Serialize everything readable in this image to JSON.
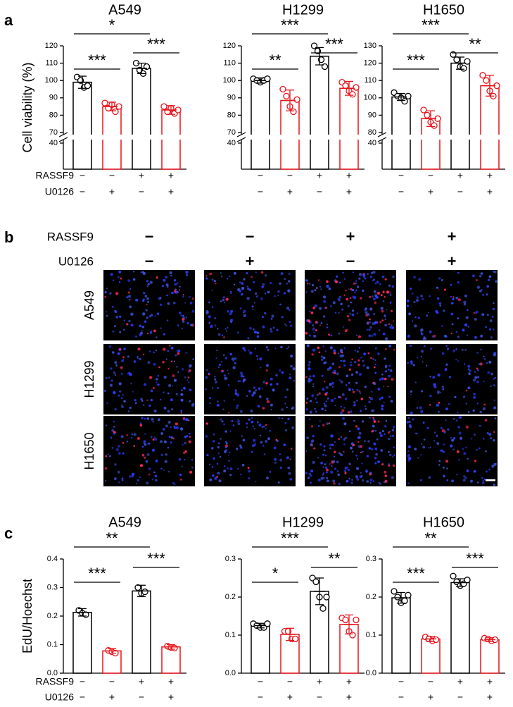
{
  "panel_labels": [
    "a",
    "b",
    "c"
  ],
  "chart_data": [
    {
      "type": "bar",
      "title": "A549",
      "y_label": "Cell viability (%)",
      "sign_row_labels": [
        "RASSF9",
        "U0126"
      ],
      "rassf9": [
        "−",
        "−",
        "+",
        "+"
      ],
      "u0126": [
        "−",
        "+",
        "−",
        "+"
      ],
      "values": [
        99,
        85,
        107,
        83
      ],
      "errors": [
        3.5,
        2.5,
        3,
        2.5
      ],
      "points": [
        [
          102,
          100,
          96,
          97
        ],
        [
          87,
          84,
          86,
          82,
          85
        ],
        [
          110,
          106,
          104,
          108
        ],
        [
          85,
          82,
          84,
          81,
          83
        ]
      ],
      "colors": [
        "#000000",
        "#e8131b",
        "#000000",
        "#e8131b"
      ],
      "ylim": [
        70,
        120
      ],
      "yticks": [
        70,
        80,
        90,
        100,
        110,
        120
      ],
      "ylim_lower": [
        0,
        40
      ],
      "yticks_lower": [
        40
      ],
      "annotations": [
        "***",
        "***",
        "*"
      ]
    },
    {
      "type": "bar",
      "title": "H1299",
      "rassf9": [
        "−",
        "−",
        "+",
        "+"
      ],
      "u0126": [
        "−",
        "+",
        "−",
        "+"
      ],
      "values": [
        100,
        88.5,
        114,
        95.5
      ],
      "errors": [
        1.5,
        6,
        5,
        4
      ],
      "points": [
        [
          101,
          100,
          99,
          100,
          101
        ],
        [
          95,
          91,
          85,
          82,
          89
        ],
        [
          120,
          117,
          112,
          108
        ],
        [
          99,
          97,
          94,
          92,
          96
        ]
      ],
      "colors": [
        "#000000",
        "#e8131b",
        "#000000",
        "#e8131b"
      ],
      "ylim": [
        70,
        120
      ],
      "yticks": [
        70,
        80,
        90,
        100,
        110,
        120
      ],
      "ylim_lower": [
        0,
        40
      ],
      "yticks_lower": [
        40
      ],
      "annotations": [
        "**",
        "***",
        "***"
      ]
    },
    {
      "type": "bar",
      "title": "H1650",
      "rassf9": [
        "−",
        "−",
        "+",
        "+"
      ],
      "u0126": [
        "−",
        "+",
        "−",
        "+"
      ],
      "values": [
        100.5,
        88,
        120,
        107
      ],
      "errors": [
        2,
        4.5,
        3.5,
        6
      ],
      "points": [
        [
          103,
          101,
          100,
          98,
          101
        ],
        [
          93,
          90,
          86,
          84,
          88
        ],
        [
          125,
          122,
          118,
          117,
          121
        ],
        [
          113,
          110,
          104,
          101,
          107
        ]
      ],
      "colors": [
        "#000000",
        "#e8131b",
        "#000000",
        "#e8131b"
      ],
      "ylim": [
        80,
        130
      ],
      "yticks": [
        80,
        90,
        100,
        110,
        120,
        130
      ],
      "ylim_lower": [
        0,
        40
      ],
      "yticks_lower": [
        40
      ],
      "annotations": [
        "***",
        "**",
        "***"
      ]
    },
    {
      "type": "bar",
      "title": "A549",
      "y_label": "EdU/Hoechst",
      "sign_row_labels": [
        "RASSF9",
        "U0126"
      ],
      "rassf9": [
        "−",
        "−",
        "+",
        "+"
      ],
      "u0126": [
        "−",
        "+",
        "−",
        "+"
      ],
      "values": [
        0.213,
        0.078,
        0.288,
        0.092
      ],
      "errors": [
        0.013,
        0.008,
        0.02,
        0.008
      ],
      "points": [
        [
          0.22,
          0.21,
          0.205
        ],
        [
          0.08,
          0.075,
          0.07
        ],
        [
          0.3,
          0.28,
          0.285
        ],
        [
          0.095,
          0.09,
          0.088
        ]
      ],
      "colors": [
        "#000000",
        "#e8131b",
        "#000000",
        "#e8131b"
      ],
      "ylim": [
        0,
        0.4
      ],
      "yticks": [
        {
          "value": 0,
          "label": "0.0"
        },
        0.1,
        0.2,
        0.3,
        0.4
      ],
      "annotations": [
        "***",
        "***",
        "**"
      ]
    },
    {
      "type": "bar",
      "title": "H1299",
      "rassf9": [
        "−",
        "−",
        "+",
        "+"
      ],
      "u0126": [
        "−",
        "+",
        "−",
        "+"
      ],
      "values": [
        0.125,
        0.102,
        0.215,
        0.128
      ],
      "errors": [
        0.006,
        0.016,
        0.035,
        0.025
      ],
      "points": [
        [
          0.13,
          0.125,
          0.12,
          0.12,
          0.13
        ],
        [
          0.11,
          0.11,
          0.09,
          0.09
        ],
        [
          0.25,
          0.24,
          0.2,
          0.17,
          0.2
        ],
        [
          0.145,
          0.14,
          0.11,
          0.1,
          0.14
        ]
      ],
      "colors": [
        "#000000",
        "#e8131b",
        "#000000",
        "#e8131b"
      ],
      "ylim": [
        0,
        0.3
      ],
      "yticks": [
        {
          "value": 0,
          "label": "0.0"
        },
        0.1,
        0.2,
        0.3
      ],
      "annotations": [
        "*",
        "**",
        "***"
      ]
    },
    {
      "type": "bar",
      "title": "H1650",
      "rassf9": [
        "−",
        "−",
        "+",
        "+"
      ],
      "u0126": [
        "−",
        "+",
        "−",
        "+"
      ],
      "values": [
        0.198,
        0.09,
        0.238,
        0.088
      ],
      "errors": [
        0.014,
        0.007,
        0.01,
        0.005
      ],
      "points": [
        [
          0.215,
          0.2,
          0.185,
          0.19,
          0.205
        ],
        [
          0.095,
          0.09,
          0.085,
          0.088
        ],
        [
          0.255,
          0.24,
          0.23,
          0.235,
          0.245
        ],
        [
          0.092,
          0.09,
          0.085,
          0.088
        ]
      ],
      "colors": [
        "#000000",
        "#e8131b",
        "#000000",
        "#e8131b"
      ],
      "ylim": [
        0,
        0.3
      ],
      "yticks": [
        {
          "value": 0,
          "label": "0.0"
        },
        0.1,
        0.2,
        0.3
      ],
      "annotations": [
        "***",
        "***",
        "**"
      ]
    }
  ],
  "image_grid": {
    "header_labels": [
      "RASSF9",
      "U0126"
    ],
    "rassf9": [
      "−",
      "−",
      "+",
      "+"
    ],
    "u0126": [
      "−",
      "+",
      "−",
      "+"
    ],
    "row_labels": [
      "A549",
      "H1299",
      "H1650"
    ]
  }
}
